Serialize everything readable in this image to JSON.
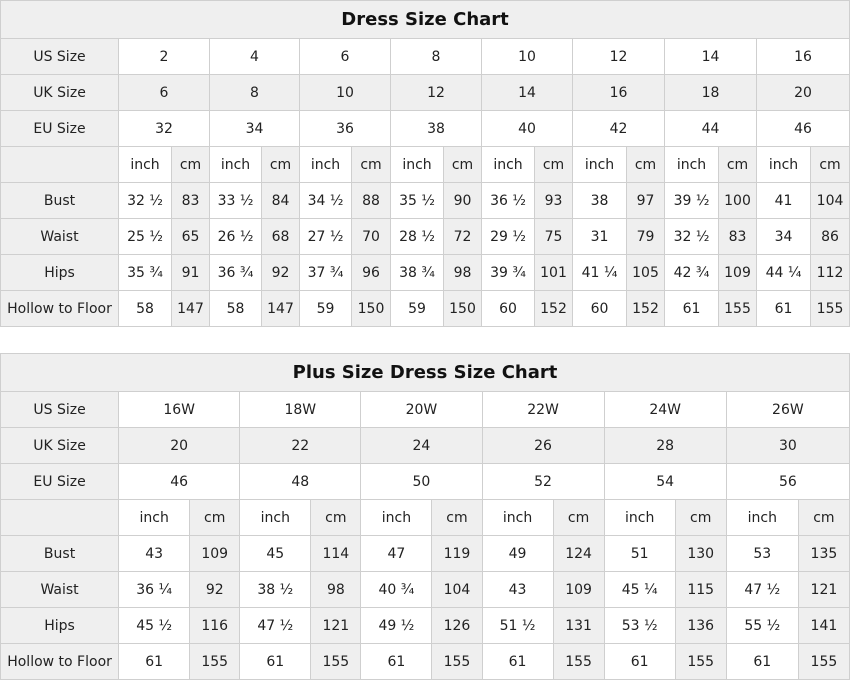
{
  "tables": [
    {
      "title": "Dress Size Chart",
      "size_rows": [
        {
          "label": "US Size",
          "values": [
            "2",
            "4",
            "6",
            "8",
            "10",
            "12",
            "14",
            "16"
          ]
        },
        {
          "label": "UK Size",
          "values": [
            "6",
            "8",
            "10",
            "12",
            "14",
            "16",
            "18",
            "20"
          ]
        },
        {
          "label": "EU Size",
          "values": [
            "32",
            "34",
            "36",
            "38",
            "40",
            "42",
            "44",
            "46"
          ]
        }
      ],
      "unit_labels": [
        "inch",
        "cm"
      ],
      "measure_rows": [
        {
          "label": "Bust",
          "values": [
            "32 ½",
            "83",
            "33 ½",
            "84",
            "34 ½",
            "88",
            "35 ½",
            "90",
            "36 ½",
            "93",
            "38",
            "97",
            "39 ½",
            "100",
            "41",
            "104"
          ]
        },
        {
          "label": "Waist",
          "values": [
            "25 ½",
            "65",
            "26 ½",
            "68",
            "27 ½",
            "70",
            "28 ½",
            "72",
            "29 ½",
            "75",
            "31",
            "79",
            "32 ½",
            "83",
            "34",
            "86"
          ]
        },
        {
          "label": "Hips",
          "values": [
            "35 ¾",
            "91",
            "36 ¾",
            "92",
            "37 ¾",
            "96",
            "38 ¾",
            "98",
            "39 ¾",
            "101",
            "41 ¼",
            "105",
            "42 ¾",
            "109",
            "44 ¼",
            "112"
          ]
        },
        {
          "label": "Hollow to Floor",
          "values": [
            "58",
            "147",
            "58",
            "147",
            "59",
            "150",
            "59",
            "150",
            "60",
            "152",
            "60",
            "152",
            "61",
            "155",
            "61",
            "155"
          ]
        }
      ]
    },
    {
      "title": "Plus Size Dress Size Chart",
      "size_rows": [
        {
          "label": "US Size",
          "values": [
            "16W",
            "18W",
            "20W",
            "22W",
            "24W",
            "26W"
          ]
        },
        {
          "label": "UK Size",
          "values": [
            "20",
            "22",
            "24",
            "26",
            "28",
            "30"
          ]
        },
        {
          "label": "EU Size",
          "values": [
            "46",
            "48",
            "50",
            "52",
            "54",
            "56"
          ]
        }
      ],
      "unit_labels": [
        "inch",
        "cm"
      ],
      "measure_rows": [
        {
          "label": "Bust",
          "values": [
            "43",
            "109",
            "45",
            "114",
            "47",
            "119",
            "49",
            "124",
            "51",
            "130",
            "53",
            "135"
          ]
        },
        {
          "label": "Waist",
          "values": [
            "36 ¼",
            "92",
            "38 ½",
            "98",
            "40 ¾",
            "104",
            "43",
            "109",
            "45 ¼",
            "115",
            "47 ½",
            "121"
          ]
        },
        {
          "label": "Hips",
          "values": [
            "45 ½",
            "116",
            "47 ½",
            "121",
            "49 ½",
            "126",
            "51 ½",
            "131",
            "53 ½",
            "136",
            "55 ½",
            "141"
          ]
        },
        {
          "label": "Hollow to Floor",
          "values": [
            "61",
            "155",
            "61",
            "155",
            "61",
            "155",
            "61",
            "155",
            "61",
            "155",
            "61",
            "155"
          ]
        }
      ]
    }
  ],
  "colors": {
    "header_bg": "#efefef",
    "border": "#cfcfcf"
  }
}
